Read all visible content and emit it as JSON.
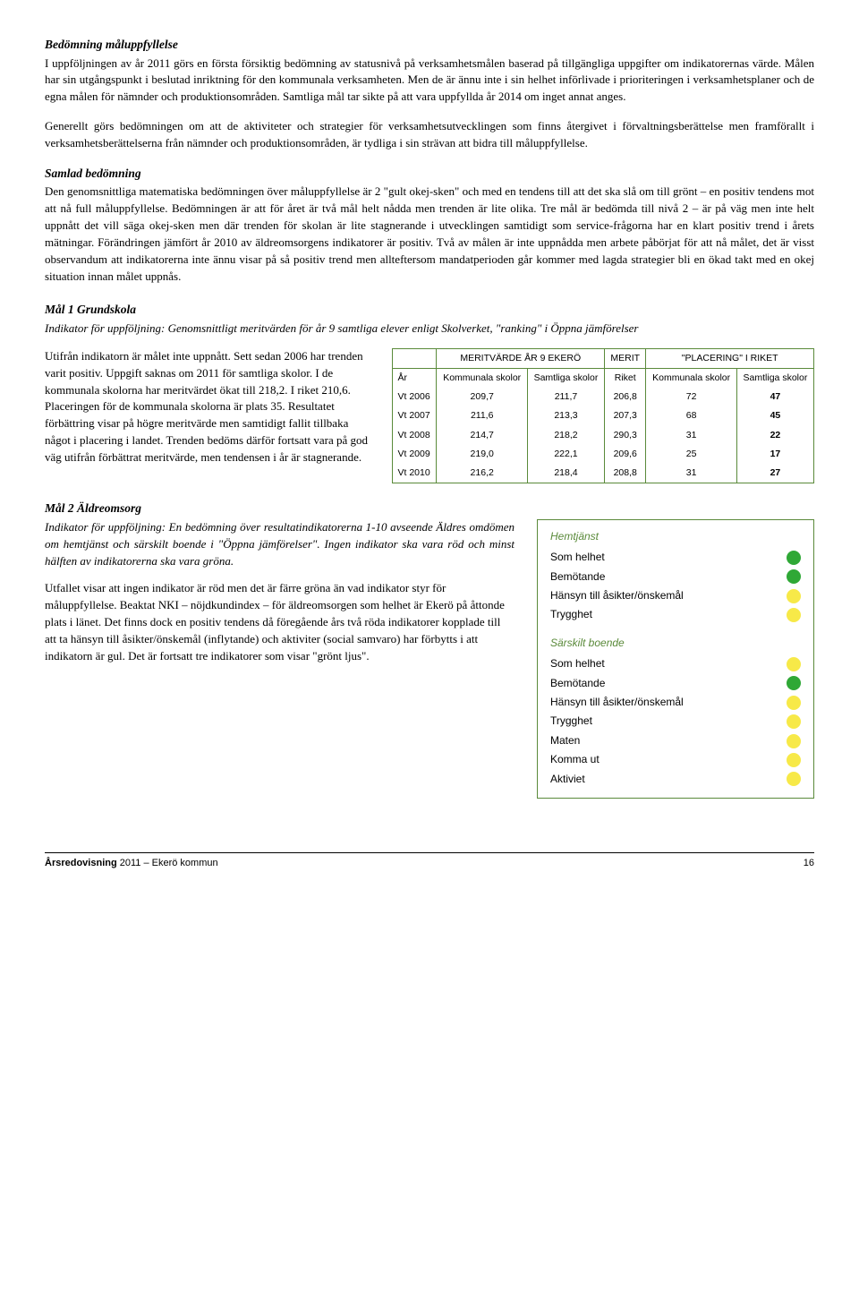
{
  "h1": "Bedömning måluppfyllelse",
  "p1": "I uppföljningen av år 2011 görs en första försiktig bedömning av statusnivå på verksamhetsmålen baserad på tillgängliga uppgifter om indikatorernas värde. Målen har sin utgångspunkt i beslutad inriktning för den kommunala verksamheten. Men de är ännu inte i sin helhet införlivade i prioriteringen i verksamhetsplaner och de egna målen för nämnder och produktionsområden. Samtliga mål tar sikte på att vara uppfyllda år 2014 om inget annat anges.",
  "p2": "Generellt görs bedömningen om att de aktiviteter och strategier för verksamhetsutvecklingen som finns återgivet i förvaltningsberättelse men framförallt i verksamhetsberättelserna från nämnder och produktionsområden, är tydliga i sin strävan att bidra till måluppfyllelse.",
  "h2": "Samlad bedömning",
  "p3": "Den genomsnittliga matematiska bedömningen över måluppfyllelse är 2 \"gult okej-sken\" och med en tendens till att det ska slå om till grönt – en positiv tendens mot att nå full måluppfyllelse. Bedömningen är att för året är två mål helt nådda men trenden är lite olika. Tre mål är bedömda till nivå 2 – är på väg men inte helt uppnått det vill säga okej-sken men där trenden för skolan är lite stagnerande i utvecklingen samtidigt som service-frågorna har en klart positiv trend i årets mätningar. Förändringen jämfört år 2010 av äldreomsorgens indikatorer är positiv. Två av målen är inte uppnådda men arbete påbörjat för att nå målet, det är visst observandum att indikatorerna inte ännu visar på så positiv trend men allteftersom mandatperioden går kommer med lagda strategier bli en ökad takt med en okej situation innan målet uppnås.",
  "m1_title": "Mål 1 Grundskola",
  "m1_indic": "Indikator för uppföljning: Genomsnittligt meritvärden för år 9 samtliga elever enligt Skolverket, \"ranking\" i Öppna jämförelser",
  "m1_text": "Utifrån indikatorn är målet inte uppnått. Sett sedan 2006 har trenden varit positiv. Uppgift saknas om 2011 för samtliga skolor. I de kommunala skolorna har meritvärdet ökat till 218,2. I riket 210,6. Placeringen för de kommunala skolorna är plats 35. Resultatet förbättring visar på högre meritvärde men samtidigt fallit tillbaka något i placering i landet. Trenden bedöms därför fortsatt vara på god väg utifrån förbättrat meritvärde, men tendensen i år är stagnerande.",
  "table": {
    "header_groups": [
      "MERITVÄRDE ÅR 9 EKERÖ",
      "MERIT",
      "\"PLACERING\" I RIKET"
    ],
    "sub_headers": [
      "År",
      "Kommunala skolor",
      "Samtliga skolor",
      "Riket",
      "Kommunala skolor",
      "Samtliga skolor"
    ],
    "rows": [
      [
        "Vt 2006",
        "209,7",
        "211,7",
        "206,8",
        "72",
        "47"
      ],
      [
        "Vt 2007",
        "211,6",
        "213,3",
        "207,3",
        "68",
        "45"
      ],
      [
        "Vt 2008",
        "214,7",
        "218,2",
        "290,3",
        "31",
        "22"
      ],
      [
        "Vt 2009",
        "219,0",
        "222,1",
        "209,6",
        "25",
        "17"
      ],
      [
        "Vt 2010",
        "216,2",
        "218,4",
        "208,8",
        "31",
        "27"
      ]
    ],
    "bold_last_col": true,
    "border_color": "#5a8a3a"
  },
  "m2_title": "Mål 2 Äldreomsorg",
  "m2_indic": "Indikator för uppföljning: En bedömning över resultatindikatorerna 1-10 avseende Äldres omdömen om hemtjänst och särskilt boende i \"Öppna jämförelser\". Ingen indikator ska vara röd och minst hälften av indikatorerna ska vara gröna.",
  "m2_text": "Utfallet visar att ingen indikator är röd men det är färre gröna än vad indikator styr för måluppfyllelse. Beaktat NKI – nöjdkundindex – för äldreomsorgen som helhet är Ekerö på åttonde plats i länet. Det finns dock en positiv tendens då föregående års två röda indikatorer kopplade till att ta hänsyn till åsikter/önskemål (inflytande) och aktiviter (social samvaro) har förbytts i att indikatorn är gul. Det är fortsatt tre indikatorer som visar \"grönt ljus\".",
  "box": {
    "sections": [
      {
        "title": "Hemtjänst",
        "items": [
          {
            "label": "Som helhet",
            "color": "#2fa836"
          },
          {
            "label": "Bemötande",
            "color": "#2fa836"
          },
          {
            "label": "Hänsyn till åsikter/önskemål",
            "color": "#f7e948"
          },
          {
            "label": "Trygghet",
            "color": "#f7e948"
          }
        ]
      },
      {
        "title": "Särskilt boende",
        "items": [
          {
            "label": "Som helhet",
            "color": "#f7e948"
          },
          {
            "label": "Bemötande",
            "color": "#2fa836"
          },
          {
            "label": "Hänsyn till åsikter/önskemål",
            "color": "#f7e948"
          },
          {
            "label": "Trygghet",
            "color": "#f7e948"
          },
          {
            "label": "Maten",
            "color": "#f7e948"
          },
          {
            "label": "Komma ut",
            "color": "#f7e948"
          },
          {
            "label": "Aktiviet",
            "color": "#f7e948"
          }
        ]
      }
    ]
  },
  "footer_left_bold": "Årsredovisning",
  "footer_left_rest": " 2011 – Ekerö kommun",
  "footer_page": "16"
}
